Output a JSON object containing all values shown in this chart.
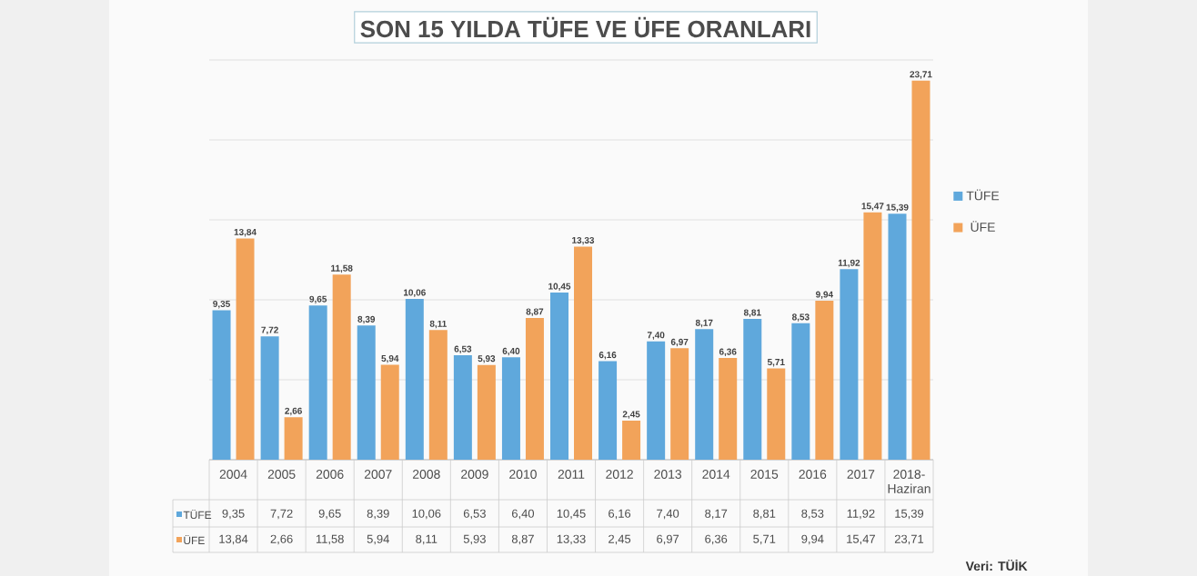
{
  "chart_data": {
    "type": "bar",
    "title": "SON 15 YILDA TÜFE VE ÜFE ORANLARI",
    "categories": [
      "2004",
      "2005",
      "2006",
      "2007",
      "2008",
      "2009",
      "2010",
      "2011",
      "2012",
      "2013",
      "2014",
      "2015",
      "2016",
      "2017",
      "2018-Haziran"
    ],
    "series": [
      {
        "name": "TÜFE",
        "color": "#5fa8dc",
        "values": [
          9.35,
          7.72,
          9.65,
          8.39,
          10.06,
          6.53,
          6.4,
          10.45,
          6.16,
          7.4,
          8.17,
          8.81,
          8.53,
          11.92,
          15.39
        ],
        "value_labels": [
          "9,35",
          "7,72",
          "9,65",
          "8,39",
          "10,06",
          "6,53",
          "6,40",
          "10,45",
          "6,16",
          "7,40",
          "8,17",
          "8,81",
          "8,53",
          "11,92",
          "15,39"
        ]
      },
      {
        "name": "ÜFE",
        "color": "#f2a35a",
        "values": [
          13.84,
          2.66,
          11.58,
          5.94,
          8.11,
          5.93,
          8.87,
          13.33,
          2.45,
          6.97,
          6.36,
          5.71,
          9.94,
          15.47,
          23.71
        ],
        "value_labels": [
          "13,84",
          "2,66",
          "11,58",
          "5,94",
          "8,11",
          "5,93",
          "8,87",
          "13,33",
          "2,45",
          "6,97",
          "6,36",
          "5,71",
          "9,94",
          "15,47",
          "23,71"
        ]
      }
    ],
    "ylim": [
      0,
      25
    ],
    "yticks": [
      {
        "value": 0,
        "label": null
      },
      {
        "value": 5,
        "label": null
      },
      {
        "value": 10,
        "label": null
      },
      {
        "value": 15,
        "label": null
      },
      {
        "value": 20,
        "label": null
      },
      {
        "value": 25,
        "label": null
      }
    ],
    "tick_labels": "x",
    "grid": "y",
    "legend": "right",
    "annotations": [
      "Veri: TÜİK"
    ]
  }
}
